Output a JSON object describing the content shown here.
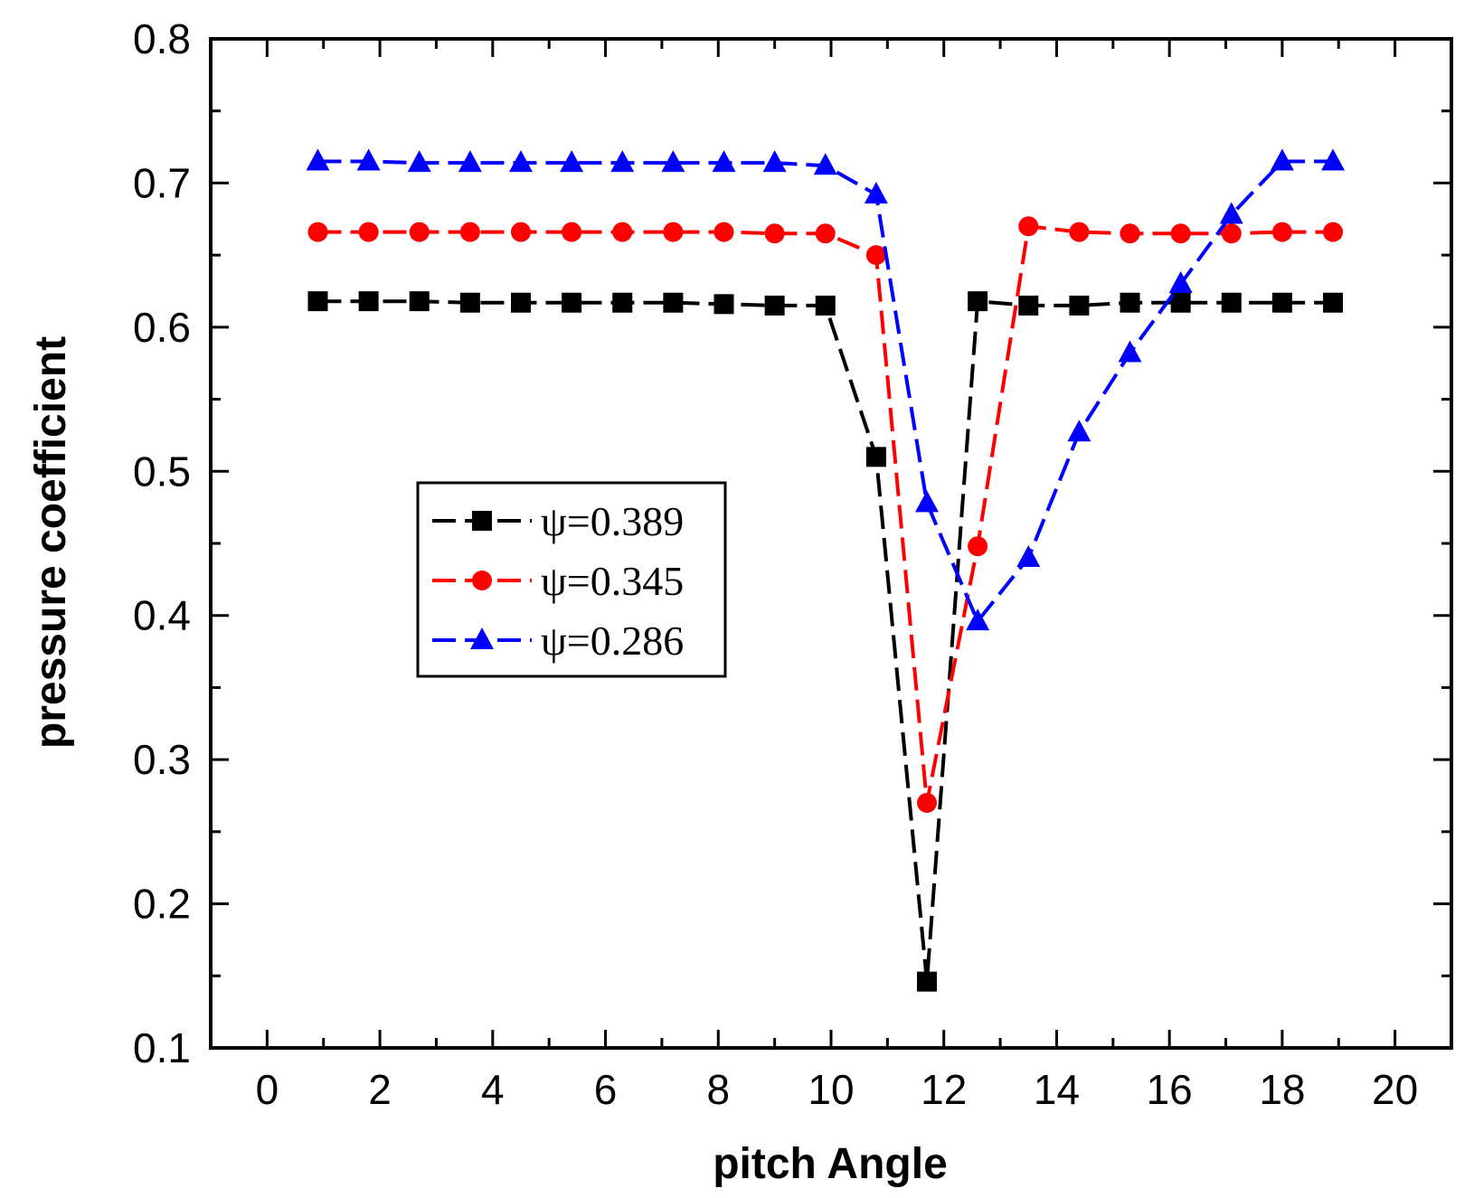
{
  "chart_data": {
    "type": "line",
    "title": "",
    "xlabel": "pitch Angle",
    "ylabel": "pressure coefficient",
    "xlim": [
      -1,
      21
    ],
    "ylim": [
      0.1,
      0.8
    ],
    "xticks": [
      "0",
      "2",
      "4",
      "6",
      "8",
      "10",
      "12",
      "14",
      "16",
      "18",
      "20"
    ],
    "yticks": [
      "0.1",
      "0.2",
      "0.3",
      "0.4",
      "0.5",
      "0.6",
      "0.7",
      "0.8"
    ],
    "grid": false,
    "legend_position": "center-left",
    "series": [
      {
        "name": "ψ=0.389",
        "color": "#000000",
        "marker": "square",
        "x": [
          0.9,
          1.8,
          2.7,
          3.6,
          4.5,
          5.4,
          6.3,
          7.2,
          8.1,
          9.0,
          9.9,
          10.8,
          11.7,
          12.6,
          13.5,
          14.4,
          15.3,
          16.2,
          17.1,
          18.0,
          18.9
        ],
        "y": [
          0.618,
          0.618,
          0.618,
          0.617,
          0.617,
          0.617,
          0.617,
          0.617,
          0.616,
          0.615,
          0.615,
          0.51,
          0.146,
          0.618,
          0.615,
          0.615,
          0.617,
          0.617,
          0.617,
          0.617,
          0.617
        ]
      },
      {
        "name": "ψ=0.345",
        "color": "#ff0000",
        "marker": "circle",
        "x": [
          0.9,
          1.8,
          2.7,
          3.6,
          4.5,
          5.4,
          6.3,
          7.2,
          8.1,
          9.0,
          9.9,
          10.8,
          11.7,
          12.6,
          13.5,
          14.4,
          15.3,
          16.2,
          17.1,
          18.0,
          18.9
        ],
        "y": [
          0.666,
          0.666,
          0.666,
          0.666,
          0.666,
          0.666,
          0.666,
          0.666,
          0.666,
          0.665,
          0.665,
          0.65,
          0.27,
          0.448,
          0.67,
          0.666,
          0.665,
          0.665,
          0.665,
          0.666,
          0.666
        ]
      },
      {
        "name": "ψ=0.286",
        "color": "#0000ff",
        "marker": "triangle",
        "x": [
          0.9,
          1.8,
          2.7,
          3.6,
          4.5,
          5.4,
          6.3,
          7.2,
          8.1,
          9.0,
          9.9,
          10.8,
          11.7,
          12.6,
          13.5,
          14.4,
          15.3,
          16.2,
          17.1,
          18.0,
          18.9
        ],
        "y": [
          0.715,
          0.715,
          0.714,
          0.714,
          0.714,
          0.714,
          0.714,
          0.714,
          0.714,
          0.714,
          0.712,
          0.692,
          0.478,
          0.396,
          0.44,
          0.527,
          0.582,
          0.63,
          0.678,
          0.715,
          0.715
        ]
      }
    ]
  }
}
